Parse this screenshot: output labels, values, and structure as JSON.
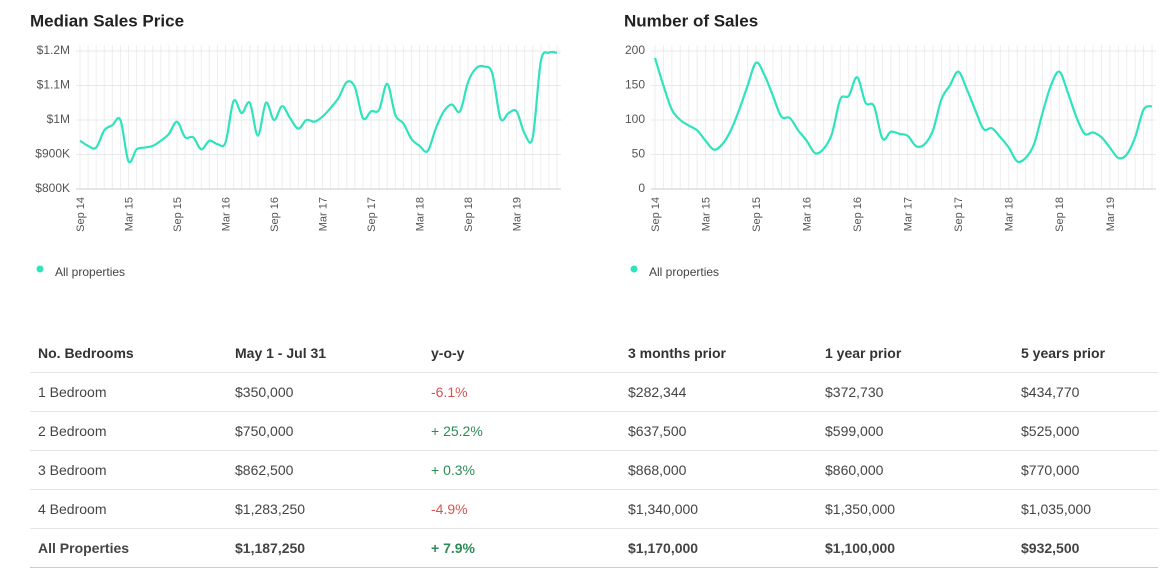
{
  "chart_data": [
    {
      "type": "line",
      "title": "Median Sales Price",
      "categories": [
        "Sep 14",
        null,
        null,
        null,
        null,
        null,
        "Mar 15",
        null,
        null,
        null,
        null,
        null,
        "Sep 15",
        null,
        null,
        null,
        null,
        null,
        "Mar 16",
        null,
        null,
        null,
        null,
        null,
        "Sep 16",
        null,
        null,
        null,
        null,
        null,
        "Mar 17",
        null,
        null,
        null,
        null,
        null,
        "Sep 17",
        null,
        null,
        null,
        null,
        null,
        "Mar 18",
        null,
        null,
        null,
        null,
        null,
        "Sep 18",
        null,
        null,
        null,
        null,
        null,
        "Mar 19",
        null,
        null,
        null,
        null,
        null
      ],
      "series": [
        {
          "name": "All properties",
          "color": "#2fe3bd",
          "values": [
            940000,
            925000,
            920000,
            970000,
            985000,
            1000000,
            880000,
            915000,
            920000,
            925000,
            940000,
            960000,
            995000,
            950000,
            950000,
            915000,
            940000,
            930000,
            935000,
            1055000,
            1020000,
            1050000,
            955000,
            1050000,
            1000000,
            1040000,
            1005000,
            975000,
            1000000,
            995000,
            1010000,
            1035000,
            1065000,
            1110000,
            1095000,
            1005000,
            1025000,
            1030000,
            1105000,
            1015000,
            990000,
            945000,
            925000,
            910000,
            975000,
            1025000,
            1045000,
            1025000,
            1110000,
            1150000,
            1155000,
            1135000,
            1005000,
            1020000,
            1025000,
            960000,
            950000,
            1170000,
            1195000,
            1195000
          ]
        }
      ],
      "ylim": [
        800000,
        1200000
      ],
      "yticks": [
        {
          "value": 800000,
          "label": "$800K"
        },
        {
          "value": 900000,
          "label": "$900K"
        },
        {
          "value": 1000000,
          "label": "$1M"
        },
        {
          "value": 1100000,
          "label": "$1.1M"
        },
        {
          "value": 1200000,
          "label": "$1.2M"
        }
      ],
      "grid": true
    },
    {
      "type": "line",
      "title": "Number of Sales",
      "categories": [
        "Sep 14",
        null,
        null,
        null,
        null,
        null,
        "Mar 15",
        null,
        null,
        null,
        null,
        null,
        "Sep 15",
        null,
        null,
        null,
        null,
        null,
        "Mar 16",
        null,
        null,
        null,
        null,
        null,
        "Sep 16",
        null,
        null,
        null,
        null,
        null,
        "Mar 17",
        null,
        null,
        null,
        null,
        null,
        "Sep 17",
        null,
        null,
        null,
        null,
        null,
        "Mar 18",
        null,
        null,
        null,
        null,
        null,
        "Sep 18",
        null,
        null,
        null,
        null,
        null,
        "Mar 19",
        null,
        null,
        null,
        null,
        null
      ],
      "series": [
        {
          "name": "All properties",
          "color": "#2fe3bd",
          "values": [
            190,
            150,
            115,
            100,
            92,
            85,
            70,
            57,
            65,
            85,
            115,
            150,
            183,
            165,
            135,
            105,
            103,
            85,
            70,
            52,
            58,
            80,
            130,
            135,
            162,
            125,
            120,
            73,
            83,
            80,
            77,
            62,
            65,
            85,
            130,
            150,
            170,
            145,
            115,
            87,
            88,
            75,
            60,
            40,
            45,
            65,
            110,
            150,
            170,
            140,
            105,
            80,
            82,
            75,
            60,
            45,
            50,
            75,
            115,
            120
          ]
        }
      ],
      "ylim": [
        0,
        200
      ],
      "yticks": [
        0,
        50,
        100,
        150,
        200
      ],
      "grid": true
    }
  ],
  "table": {
    "header": [
      "No. Bedrooms",
      "May 1 - Jul 31",
      "y-o-y",
      "3 months prior",
      "1 year prior",
      "5 years prior"
    ],
    "rows": [
      [
        "1 Bedroom",
        "$350,000",
        "-6.1%",
        "$282,344",
        "$372,730",
        "$434,770"
      ],
      [
        "2 Bedroom",
        "$750,000",
        "+ 25.2%",
        "$637,500",
        "$599,000",
        "$525,000"
      ],
      [
        "3 Bedroom",
        "$862,500",
        "+ 0.3%",
        "$868,000",
        "$860,000",
        "$770,000"
      ],
      [
        "4 Bedroom",
        "$1,283,250",
        "-4.9%",
        "$1,340,000",
        "$1,350,000",
        "$1,035,000"
      ],
      [
        "All Properties",
        "$1,187,250",
        "+ 7.9%",
        "$1,170,000",
        "$1,100,000",
        "$932,500"
      ]
    ]
  }
}
